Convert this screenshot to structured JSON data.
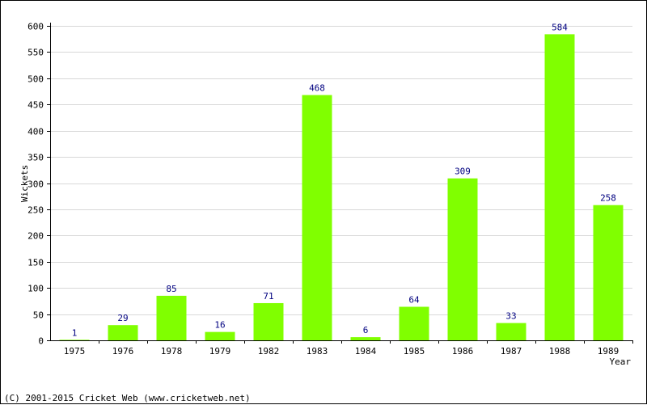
{
  "chart_data": {
    "type": "bar",
    "categories": [
      "1975",
      "1976",
      "1978",
      "1979",
      "1982",
      "1983",
      "1984",
      "1985",
      "1986",
      "1987",
      "1988",
      "1989"
    ],
    "values": [
      1,
      29,
      85,
      16,
      71,
      468,
      6,
      64,
      309,
      33,
      584,
      258
    ],
    "xlabel": "Year",
    "ylabel": "Wickets",
    "ylim": [
      0,
      600
    ],
    "yticks": [
      0,
      50,
      100,
      150,
      200,
      250,
      300,
      350,
      400,
      450,
      500,
      550,
      600
    ],
    "grid": true,
    "data_labels": true,
    "bar_color": "#80ff00",
    "label_color": "#000080",
    "grid_color": "#d8d8d8"
  },
  "footer": {
    "copyright": "(C) 2001-2015 Cricket Web (www.cricketweb.net)"
  }
}
